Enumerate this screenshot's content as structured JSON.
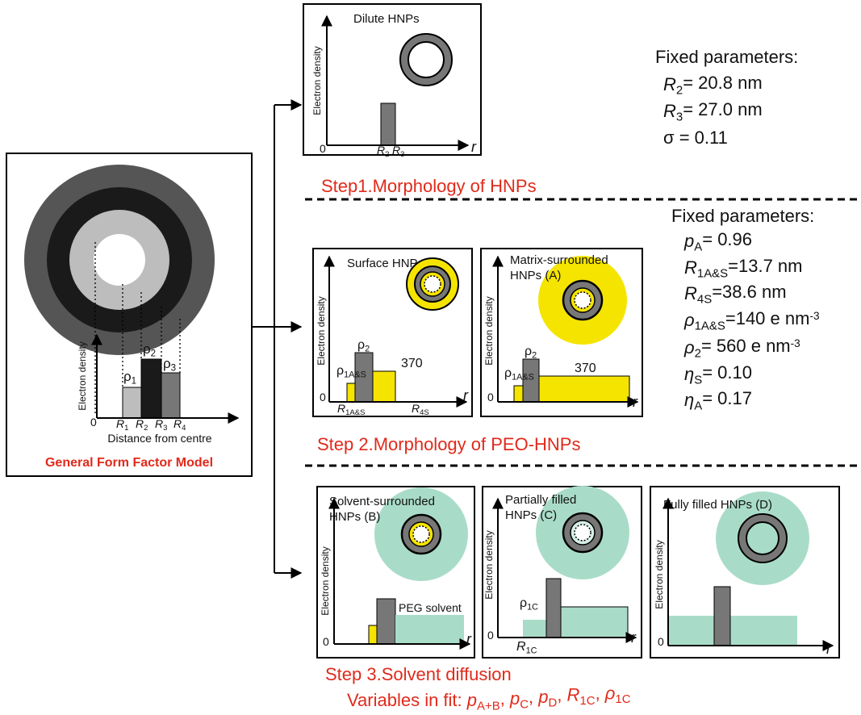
{
  "general": {
    "y_label": "Electron density",
    "x_label": "Distance from centre",
    "origin": "0",
    "caption": "General Form Factor Model",
    "rho": [
      {
        "m": "ρ",
        "s": "1"
      },
      {
        "m": "ρ",
        "s": "2"
      },
      {
        "m": "ρ",
        "s": "3"
      }
    ],
    "radii": [
      {
        "m": "R",
        "s": "1"
      },
      {
        "m": "R",
        "s": "2"
      },
      {
        "m": "R",
        "s": "3"
      },
      {
        "m": "R",
        "s": "4"
      }
    ]
  },
  "step1": {
    "caption": "Step1.Morphology of HNPs",
    "panel": {
      "title": "Dilute HNPs",
      "y_label": "Electron density",
      "origin": "0",
      "x_var": "r",
      "radii": [
        {
          "m": "R",
          "s": "2"
        },
        {
          "m": "R",
          "s": "3"
        }
      ]
    },
    "fixed": {
      "heading": "Fixed parameters:",
      "items": [
        {
          "m": "R",
          "s": "2",
          "r": "= 20.8 nm"
        },
        {
          "m": "R",
          "s": "3",
          "r": "= 27.0 nm"
        },
        {
          "m": "σ",
          "r": " = 0.11"
        }
      ]
    }
  },
  "step2": {
    "caption": "Step 2.Morphology of PEO-HNPs",
    "panels": [
      {
        "title_lines": [
          "Surface HNPs (S)"
        ],
        "y_label": "Electron density",
        "origin": "0",
        "x_var": "r",
        "rho_core": {
          "m": "ρ",
          "s": "1A&S"
        },
        "rho_shell": {
          "m": "ρ",
          "s": "2"
        },
        "value": 370,
        "radii": [
          {
            "m": "R",
            "s": "1A&S"
          },
          {
            "m": "R",
            "s": "4S"
          }
        ]
      },
      {
        "title_lines": [
          "Matrix-surrounded",
          "HNPs (A)"
        ],
        "y_label": "Electron density",
        "origin": "0",
        "x_var": "r",
        "rho_core": {
          "m": "ρ",
          "s": "1A&S"
        },
        "rho_shell": {
          "m": "ρ",
          "s": "2"
        },
        "value": 370
      }
    ],
    "fixed": {
      "heading": "Fixed parameters:",
      "items": [
        {
          "m": "p",
          "s": "A",
          "r": "= 0.96"
        },
        {
          "m": "R",
          "s": "1A&S",
          "r": "=13.7 nm"
        },
        {
          "m": "R",
          "s": "4S",
          "r": "=38.6 nm"
        },
        {
          "m": "ρ",
          "s": "1A&S",
          "r": "=140 e nm",
          "sup": "-3"
        },
        {
          "m": "ρ",
          "s": "2",
          "r": "= 560 e nm",
          "sup": "-3"
        },
        {
          "m": "η",
          "s": "S",
          "r": "= 0.10"
        },
        {
          "m": "η",
          "s": "A",
          "r": "= 0.17"
        }
      ]
    }
  },
  "step3": {
    "caption": "Step 3.Solvent diffusion",
    "variables": {
      "prefix": "Variables in fit:",
      "items": [
        {
          "m": "p",
          "s": "A+B",
          "r": ", "
        },
        {
          "m": "p",
          "s": "C",
          "r": ", "
        },
        {
          "m": "p",
          "s": "D",
          "r": ", "
        },
        {
          "m": "R",
          "s": "1C",
          "r": ", "
        },
        {
          "m": "ρ",
          "s": "1C"
        }
      ]
    },
    "panels": [
      {
        "title_lines": [
          "Solvent-surrounded",
          "HNPs (B)"
        ],
        "y_label": "Electron density",
        "origin": "0",
        "x_var": "r",
        "solvent": "PEG solvent"
      },
      {
        "title_lines": [
          "Partially filled",
          "HNPs (C)"
        ],
        "y_label": "Electron density",
        "origin": "0",
        "x_var": "r",
        "rho_core": {
          "m": "ρ",
          "s": "1C"
        },
        "radius": {
          "m": "R",
          "s": "1C"
        }
      },
      {
        "title_lines": [
          "Fully filled HNPs (D)"
        ],
        "y_label": "Electron density",
        "origin": "0",
        "x_var": "r"
      }
    ]
  }
}
